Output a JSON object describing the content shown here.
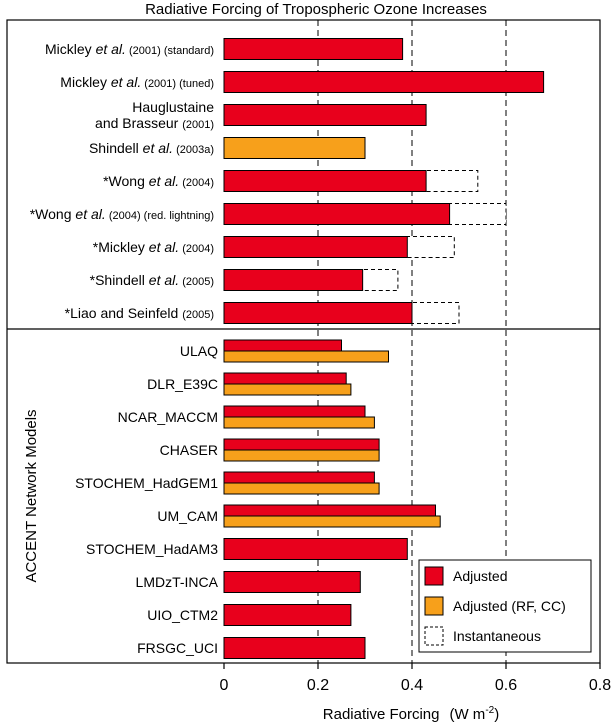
{
  "chart_data": {
    "type": "bar",
    "title": "Radiative Forcing of Tropospheric Ozone Increases",
    "xlabel": "Radiative Forcing",
    "xlabel_unit": "(W m",
    "xlabel_unit_exp": "-2",
    "xlabel_unit_close": ")",
    "xlim": [
      0,
      0.8
    ],
    "xticks": [
      "0",
      "0.2",
      "0.4",
      "0.6",
      "0.8"
    ],
    "xtick_values": [
      0,
      0.2,
      0.4,
      0.6,
      0.8
    ],
    "dashed_gridlines_at": [
      0.2,
      0.4,
      0.6
    ],
    "group_label": "ACCENT Network Models",
    "colors": {
      "adjusted": "#e8001c",
      "adjusted_rf_cc": "#f7a01b",
      "instantaneous": "#ffffff"
    },
    "legend": {
      "position": "bottom-right",
      "entries": [
        {
          "label": "Adjusted",
          "key": "adjusted"
        },
        {
          "label": "Adjusted (RF, CC)",
          "key": "adjusted_rf_cc"
        },
        {
          "label": "Instantaneous",
          "key": "instantaneous"
        }
      ]
    },
    "studies": [
      {
        "parts": [
          {
            "t": "Mickley "
          },
          {
            "t": "et al.",
            "i": true
          },
          {
            "t": " (2001)",
            "s": true
          },
          {
            "t": " (standard)",
            "s": true
          }
        ],
        "adjusted": 0.38,
        "color": "adjusted"
      },
      {
        "parts": [
          {
            "t": "Mickley "
          },
          {
            "t": "et al.",
            "i": true
          },
          {
            "t": " (2001)",
            "s": true
          },
          {
            "t": " (tuned)",
            "s": true
          }
        ],
        "adjusted": 0.68,
        "color": "adjusted"
      },
      {
        "parts": [
          {
            "t": "Hauglustaine"
          }
        ],
        "parts2": [
          {
            "t": "and Brasseur "
          },
          {
            "t": "(2001)",
            "s": true
          }
        ],
        "adjusted": 0.43,
        "color": "adjusted"
      },
      {
        "parts": [
          {
            "t": "Shindell "
          },
          {
            "t": "et al.",
            "i": true
          },
          {
            "t": " (2003a)",
            "s": true
          }
        ],
        "adjusted": 0.3,
        "color": "adjusted_rf_cc"
      },
      {
        "parts": [
          {
            "t": "*Wong "
          },
          {
            "t": "et al.",
            "i": true
          },
          {
            "t": " (2004)",
            "s": true
          }
        ],
        "adjusted": 0.43,
        "instantaneous": 0.54,
        "color": "adjusted"
      },
      {
        "parts": [
          {
            "t": "*Wong "
          },
          {
            "t": "et al.",
            "i": true
          },
          {
            "t": " (2004)",
            "s": true
          },
          {
            "t": " (red. lightning)",
            "s": true
          }
        ],
        "adjusted": 0.48,
        "instantaneous": 0.6,
        "color": "adjusted"
      },
      {
        "parts": [
          {
            "t": "*Mickley "
          },
          {
            "t": "et al.",
            "i": true
          },
          {
            "t": " (2004)",
            "s": true
          }
        ],
        "adjusted": 0.39,
        "instantaneous": 0.49,
        "color": "adjusted"
      },
      {
        "parts": [
          {
            "t": "*Shindell "
          },
          {
            "t": "et al.",
            "i": true
          },
          {
            "t": " (2005)",
            "s": true
          }
        ],
        "adjusted": 0.295,
        "instantaneous": 0.37,
        "color": "adjusted"
      },
      {
        "parts": [
          {
            "t": "*Liao and Seinfeld "
          },
          {
            "t": "(2005)",
            "s": true
          }
        ],
        "adjusted": 0.4,
        "instantaneous": 0.5,
        "color": "adjusted"
      }
    ],
    "models": [
      {
        "name": "ULAQ",
        "adjusted": 0.25,
        "adjusted_rf_cc": 0.35
      },
      {
        "name": "DLR_E39C",
        "adjusted": 0.26,
        "adjusted_rf_cc": 0.27
      },
      {
        "name": "NCAR_MACCM",
        "adjusted": 0.3,
        "adjusted_rf_cc": 0.32
      },
      {
        "name": "CHASER",
        "adjusted": 0.33,
        "adjusted_rf_cc": 0.33
      },
      {
        "name": "STOCHEM_HadGEM1",
        "adjusted": 0.32,
        "adjusted_rf_cc": 0.33
      },
      {
        "name": "UM_CAM",
        "adjusted": 0.45,
        "adjusted_rf_cc": 0.46
      },
      {
        "name": "STOCHEM_HadAM3",
        "adjusted": 0.39
      },
      {
        "name": "LMDzT-INCA",
        "adjusted": 0.29
      },
      {
        "name": "UIO_CTM2",
        "adjusted": 0.27
      },
      {
        "name": "FRSGC_UCI",
        "adjusted": 0.3
      }
    ]
  }
}
